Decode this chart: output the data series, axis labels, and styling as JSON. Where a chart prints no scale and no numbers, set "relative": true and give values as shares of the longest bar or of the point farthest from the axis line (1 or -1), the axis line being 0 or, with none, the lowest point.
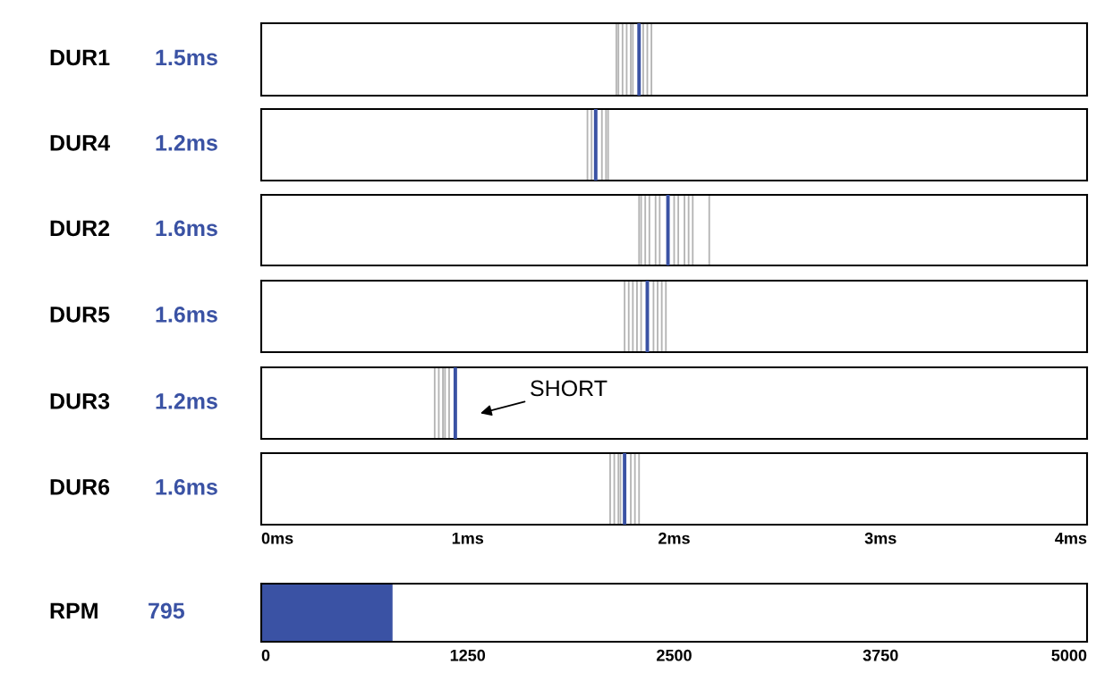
{
  "chart_data": [
    {
      "type": "bar",
      "relative": true,
      "ylabel": "DUR1",
      "annotations": [
        "1.5ms"
      ],
      "xlim": [
        0,
        4
      ],
      "tick_labels": false,
      "series": [
        {
          "color": "#b4b4b4",
          "x": [
            1.72,
            1.73,
            1.75,
            1.77,
            1.79,
            1.8,
            1.85,
            1.87,
            1.89
          ],
          "values": [
            1,
            1,
            1,
            1,
            1,
            1,
            1,
            1,
            1
          ]
        },
        {
          "color": "#3a52a4",
          "x": [
            1.83
          ],
          "values": [
            1
          ]
        }
      ]
    },
    {
      "type": "bar",
      "relative": true,
      "ylabel": "DUR4",
      "annotations": [
        "1.2ms"
      ],
      "xlim": [
        0,
        4
      ],
      "tick_labels": false,
      "series": [
        {
          "color": "#b4b4b4",
          "x": [
            1.58,
            1.6,
            1.65,
            1.67,
            1.68
          ],
          "values": [
            1,
            1,
            1,
            1,
            1
          ]
        },
        {
          "color": "#3a52a4",
          "x": [
            1.62
          ],
          "values": [
            1
          ]
        }
      ]
    },
    {
      "type": "bar",
      "relative": true,
      "ylabel": "DUR2",
      "annotations": [
        "1.6ms"
      ],
      "xlim": [
        0,
        4
      ],
      "tick_labels": false,
      "series": [
        {
          "color": "#b4b4b4",
          "x": [
            1.83,
            1.84,
            1.86,
            1.88,
            1.91,
            1.93,
            2.0,
            2.02,
            2.05,
            2.07,
            2.09,
            2.17
          ],
          "values": [
            1,
            1,
            1,
            1,
            1,
            1,
            1,
            1,
            1,
            1,
            1,
            1
          ]
        },
        {
          "color": "#3a52a4",
          "x": [
            1.97
          ],
          "values": [
            1
          ]
        }
      ]
    },
    {
      "type": "bar",
      "relative": true,
      "ylabel": "DUR5",
      "annotations": [
        "1.6ms"
      ],
      "xlim": [
        0,
        4
      ],
      "tick_labels": false,
      "series": [
        {
          "color": "#b4b4b4",
          "x": [
            1.76,
            1.78,
            1.8,
            1.82,
            1.84,
            1.9,
            1.92,
            1.94,
            1.96
          ],
          "values": [
            1,
            1,
            1,
            1,
            1,
            1,
            1,
            1,
            1
          ]
        },
        {
          "color": "#3a52a4",
          "x": [
            1.87
          ],
          "values": [
            1
          ]
        }
      ]
    },
    {
      "type": "bar",
      "relative": true,
      "ylabel": "DUR3",
      "annotations": [
        "1.2ms",
        "SHORT"
      ],
      "xlim": [
        0,
        4
      ],
      "tick_labels": false,
      "series": [
        {
          "color": "#b4b4b4",
          "x": [
            0.84,
            0.86,
            0.88,
            0.89,
            0.91
          ],
          "values": [
            1,
            1,
            1,
            1,
            1
          ]
        },
        {
          "color": "#3a52a4",
          "x": [
            0.94
          ],
          "values": [
            1
          ]
        }
      ]
    },
    {
      "type": "bar",
      "relative": true,
      "ylabel": "DUR6",
      "annotations": [
        "1.6ms"
      ],
      "xlim": [
        0,
        4
      ],
      "tick_labels": "x",
      "xticks": [
        {
          "value": 0,
          "label": "0ms"
        },
        {
          "value": 1,
          "label": "1ms"
        },
        {
          "value": 2,
          "label": "2ms"
        },
        {
          "value": 3,
          "label": "3ms"
        },
        {
          "value": 4,
          "label": "4ms"
        }
      ],
      "series": [
        {
          "color": "#b4b4b4",
          "x": [
            1.69,
            1.71,
            1.73,
            1.74,
            1.79,
            1.81,
            1.83
          ],
          "values": [
            1,
            1,
            1,
            1,
            1,
            1,
            1
          ]
        },
        {
          "color": "#3a52a4",
          "x": [
            1.76
          ],
          "values": [
            1
          ]
        }
      ]
    },
    {
      "type": "bar",
      "orientation": "horizontal",
      "ylabel": "RPM",
      "annotations": [
        "795"
      ],
      "categories": [
        null
      ],
      "values": [
        795
      ],
      "color": "#3a52a4",
      "xlim": [
        0,
        5000
      ],
      "xticks": [
        0,
        1250,
        2500,
        3750,
        5000
      ],
      "tick_labels": "x"
    }
  ]
}
